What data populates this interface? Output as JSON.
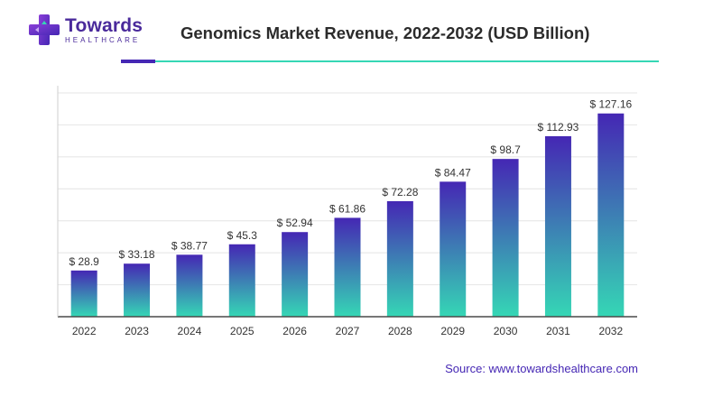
{
  "brand": {
    "name": "Towards",
    "subname": "HEALTHCARE",
    "logo_icon": "medical-cross-icon",
    "colors": {
      "purple": "#4527b4",
      "teal": "#35d7b5",
      "text": "#2b2b2b"
    }
  },
  "source": "Source: www.towardshealthcare.com",
  "chart_data": {
    "type": "bar",
    "title": "Genomics Market Revenue, 2022-2032 (USD Billion)",
    "xlabel": "",
    "ylabel": "",
    "categories": [
      "2022",
      "2023",
      "2024",
      "2025",
      "2026",
      "2027",
      "2028",
      "2029",
      "2030",
      "2031",
      "2032"
    ],
    "values": [
      28.9,
      33.18,
      38.77,
      45.3,
      52.94,
      61.86,
      72.28,
      84.47,
      98.7,
      112.93,
      127.16
    ],
    "value_labels": [
      "$ 28.9",
      "$ 33.18",
      "$ 38.77",
      "$ 45.3",
      "$ 52.94",
      "$ 61.86",
      "$ 72.28",
      "$ 84.47",
      "$ 98.7",
      "$ 112.93",
      "$ 127.16"
    ],
    "ylim": [
      0,
      140
    ],
    "grid": true,
    "gradient": {
      "top": "#4527b4",
      "bottom": "#35d7b5"
    }
  }
}
